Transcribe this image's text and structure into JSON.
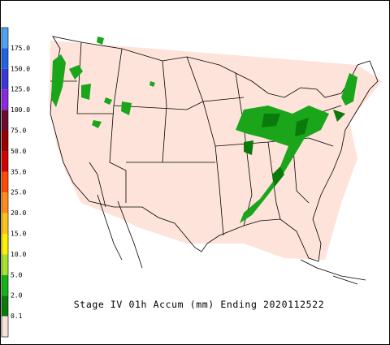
{
  "legend": {
    "labels": [
      "175.0",
      "150.0",
      "125.0",
      "100.0",
      "75.0",
      "50.0",
      "35.0",
      "25.0",
      "20.0",
      "15.0",
      "10.0",
      "5.0",
      "2.0",
      "0.1"
    ],
    "colors": [
      "#4fa3f0",
      "#1f63e6",
      "#3a3adc",
      "#8a2be2",
      "#6e0a32",
      "#9a0000",
      "#d40000",
      "#ff4a00",
      "#ff8c1a",
      "#ffc21a",
      "#fff000",
      "#a6e22e",
      "#14b414",
      "#0a7a0a",
      "#f7e2da"
    ]
  },
  "caption": "Stage IV 01h Accum (mm) Ending 2020112522"
}
